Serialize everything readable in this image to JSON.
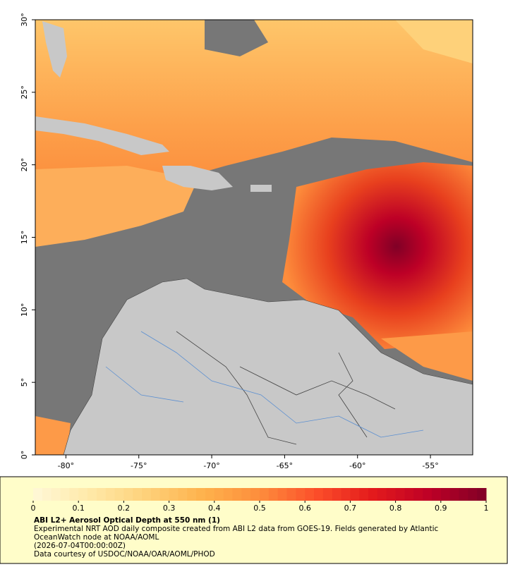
{
  "map": {
    "lon_range": [
      -82.1,
      -52.1
    ],
    "lat_range": [
      0,
      30
    ],
    "lat_ticks": [
      {
        "value": 0,
        "label": "0°"
      },
      {
        "value": 5,
        "label": "5°"
      },
      {
        "value": 10,
        "label": "10°"
      },
      {
        "value": 15,
        "label": "15°"
      },
      {
        "value": 20,
        "label": "20°"
      },
      {
        "value": 25,
        "label": "25°"
      },
      {
        "value": 30,
        "label": "30°"
      }
    ],
    "lon_ticks": [
      {
        "value": -80,
        "label": "-80°"
      },
      {
        "value": -75,
        "label": "-75°"
      },
      {
        "value": -70,
        "label": "-70°"
      },
      {
        "value": -65,
        "label": "-65°"
      },
      {
        "value": -60,
        "label": "-60°"
      },
      {
        "value": -55,
        "label": "-55°"
      }
    ]
  },
  "colorbar": {
    "range": [
      0,
      1
    ],
    "ticks": [
      0,
      0.1,
      0.2,
      0.3,
      0.4,
      0.5,
      0.6,
      0.7,
      0.8,
      0.9,
      1
    ],
    "colors": [
      "#fff8d8",
      "#ffe9a8",
      "#fed17a",
      "#feb24c",
      "#fd8d3c",
      "#fc4e2a",
      "#e31a1c",
      "#bd0026",
      "#800026"
    ]
  },
  "caption": {
    "title": "ABI L2+ Aerosol Optical Depth at 550 nm (1)",
    "lines": [
      "Experimental NRT AOD daily composite created from ABI L2 data from GOES-19. Fields generated by Atlantic",
      "OceanWatch node at NOAA/AOML",
      "(2026-07-04T00:00:00Z)",
      "Data courtesy of USDOC/NOAA/OAR/AOML/PHOD"
    ]
  }
}
